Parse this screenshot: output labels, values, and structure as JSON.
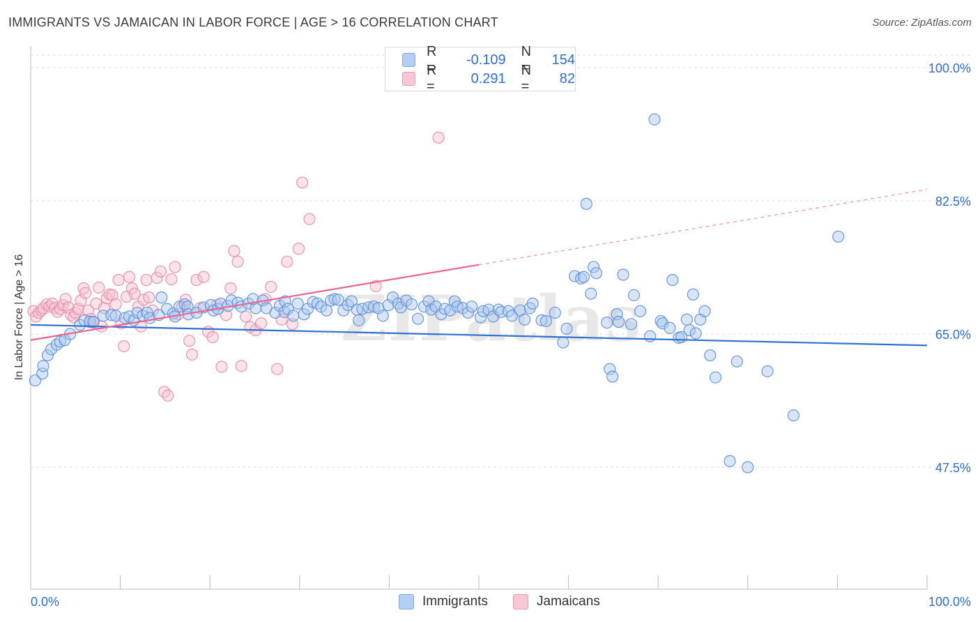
{
  "title": "IMMIGRANTS VS JAMAICAN IN LABOR FORCE | AGE > 16 CORRELATION CHART",
  "source": "Source: ZipAtlas.com",
  "watermark": "ZIPatlas",
  "legend": {
    "rows": [
      {
        "r_label": "R =",
        "r_value": "-0.109",
        "n_label": "N =",
        "n_value": "154",
        "color": "#8db4ea"
      },
      {
        "r_label": "R =",
        "r_value": "0.291",
        "n_label": "N =",
        "n_value": "82",
        "color": "#f4a9bd"
      }
    ]
  },
  "bottom_legend": {
    "immigrants": "Immigrants",
    "jamaicans": "Jamaicans"
  },
  "colors": {
    "blue_fill": "#a9c6ef",
    "blue_stroke": "#5b8fd8",
    "blue_line": "#2f6fd0",
    "pink_fill": "#f6c1cf",
    "pink_stroke": "#e88aa6",
    "pink_line": "#e8658f",
    "tick_label": "#2e6fcf",
    "grid": "#dddddd"
  },
  "chart_data": {
    "type": "scatter",
    "title": "IMMIGRANTS VS JAMAICAN IN LABOR FORCE | AGE > 16 CORRELATION CHART",
    "xlabel": "",
    "ylabel": "In Labor Force | Age > 16",
    "xlim": [
      0,
      100
    ],
    "ylim": [
      31.5,
      100.5
    ],
    "x_tick_labels": [
      "0.0%",
      "100.0%"
    ],
    "y_ticks": [
      47.5,
      65.0,
      82.5,
      100.0
    ],
    "y_tick_labels": [
      "47.5%",
      "65.0%",
      "82.5%",
      "100.0%"
    ],
    "grid": "horizontal dashed",
    "legend_position": "top-center",
    "series": [
      {
        "name": "Immigrants",
        "R": -0.109,
        "N": 154,
        "trend": {
          "x": [
            0,
            100
          ],
          "y": [
            66.2,
            63.5
          ],
          "dashed_from": null
        },
        "points": [
          [
            0.5,
            58.9
          ],
          [
            1.3,
            59.8
          ],
          [
            1.4,
            60.8
          ],
          [
            1.9,
            62.2
          ],
          [
            2.3,
            63.0
          ],
          [
            2.9,
            63.6
          ],
          [
            3.3,
            64.0
          ],
          [
            3.8,
            64.2
          ],
          [
            4.4,
            65.0
          ],
          [
            5.5,
            66.2
          ],
          [
            6.0,
            66.8
          ],
          [
            6.6,
            66.6
          ],
          [
            7.0,
            66.6
          ],
          [
            8.1,
            67.4
          ],
          [
            9.0,
            67.5
          ],
          [
            9.5,
            67.4
          ],
          [
            10.5,
            67.1
          ],
          [
            11.0,
            67.3
          ],
          [
            11.5,
            66.8
          ],
          [
            11.9,
            67.8
          ],
          [
            12.5,
            67.4
          ],
          [
            13.0,
            67.8
          ],
          [
            13.3,
            67.1
          ],
          [
            14.3,
            67.5
          ],
          [
            14.6,
            69.8
          ],
          [
            15.2,
            68.3
          ],
          [
            15.9,
            67.7
          ],
          [
            16.1,
            67.3
          ],
          [
            16.6,
            68.6
          ],
          [
            17.2,
            68.9
          ],
          [
            17.5,
            68.6
          ],
          [
            17.6,
            67.6
          ],
          [
            18.5,
            67.8
          ],
          [
            19.3,
            68.5
          ],
          [
            20.1,
            68.8
          ],
          [
            20.4,
            68.1
          ],
          [
            20.9,
            68.3
          ],
          [
            21.2,
            69.0
          ],
          [
            22.0,
            68.7
          ],
          [
            22.4,
            69.4
          ],
          [
            23.1,
            69.1
          ],
          [
            23.5,
            68.6
          ],
          [
            24.3,
            69.0
          ],
          [
            25.1,
            68.4
          ],
          [
            24.8,
            69.6
          ],
          [
            25.9,
            69.4
          ],
          [
            26.3,
            68.4
          ],
          [
            27.3,
            67.8
          ],
          [
            27.8,
            68.7
          ],
          [
            28.3,
            67.9
          ],
          [
            28.4,
            69.3
          ],
          [
            28.7,
            68.3
          ],
          [
            29.3,
            67.4
          ],
          [
            29.8,
            69.0
          ],
          [
            30.5,
            67.6
          ],
          [
            30.9,
            68.3
          ],
          [
            31.5,
            69.2
          ],
          [
            32.0,
            69.0
          ],
          [
            32.4,
            68.6
          ],
          [
            33.0,
            68.1
          ],
          [
            33.5,
            69.4
          ],
          [
            33.9,
            69.6
          ],
          [
            34.3,
            69.5
          ],
          [
            34.9,
            68.1
          ],
          [
            35.4,
            68.8
          ],
          [
            35.8,
            69.3
          ],
          [
            36.4,
            68.2
          ],
          [
            36.6,
            66.8
          ],
          [
            37.0,
            68.3
          ],
          [
            37.7,
            68.5
          ],
          [
            38.3,
            68.6
          ],
          [
            38.8,
            68.4
          ],
          [
            39.3,
            67.4
          ],
          [
            39.9,
            68.8
          ],
          [
            40.4,
            69.8
          ],
          [
            41.0,
            69.0
          ],
          [
            41.3,
            68.5
          ],
          [
            41.9,
            69.4
          ],
          [
            42.5,
            68.9
          ],
          [
            43.2,
            67.0
          ],
          [
            43.9,
            68.6
          ],
          [
            44.4,
            69.3
          ],
          [
            44.7,
            68.2
          ],
          [
            45.2,
            68.6
          ],
          [
            45.8,
            67.6
          ],
          [
            46.2,
            68.3
          ],
          [
            46.8,
            68.1
          ],
          [
            47.3,
            69.3
          ],
          [
            47.6,
            68.6
          ],
          [
            48.2,
            68.4
          ],
          [
            48.8,
            67.8
          ],
          [
            49.2,
            68.6
          ],
          [
            50.2,
            67.2
          ],
          [
            50.5,
            68.0
          ],
          [
            51.1,
            68.2
          ],
          [
            51.6,
            67.3
          ],
          [
            52.2,
            68.2
          ],
          [
            52.5,
            67.9
          ],
          [
            53.3,
            68.0
          ],
          [
            53.7,
            67.4
          ],
          [
            54.6,
            68.1
          ],
          [
            55.1,
            66.9
          ],
          [
            55.7,
            68.4
          ],
          [
            56.0,
            69.0
          ],
          [
            57.0,
            66.8
          ],
          [
            57.5,
            66.7
          ],
          [
            58.5,
            67.8
          ],
          [
            59.4,
            63.9
          ],
          [
            59.8,
            65.7
          ],
          [
            60.7,
            72.6
          ],
          [
            61.4,
            72.3
          ],
          [
            61.7,
            72.5
          ],
          [
            62.0,
            82.1
          ],
          [
            62.5,
            70.3
          ],
          [
            62.8,
            73.8
          ],
          [
            63.1,
            73.0
          ],
          [
            64.3,
            66.5
          ],
          [
            64.6,
            60.4
          ],
          [
            64.9,
            59.4
          ],
          [
            65.4,
            67.6
          ],
          [
            65.6,
            66.6
          ],
          [
            66.1,
            72.8
          ],
          [
            67.0,
            66.3
          ],
          [
            67.3,
            70.1
          ],
          [
            68.0,
            68.0
          ],
          [
            69.1,
            64.7
          ],
          [
            69.6,
            93.2
          ],
          [
            70.3,
            66.7
          ],
          [
            70.5,
            66.4
          ],
          [
            71.3,
            65.8
          ],
          [
            71.6,
            72.1
          ],
          [
            72.3,
            64.5
          ],
          [
            72.6,
            64.6
          ],
          [
            73.2,
            66.9
          ],
          [
            73.5,
            65.5
          ],
          [
            73.9,
            70.2
          ],
          [
            74.2,
            65.1
          ],
          [
            74.7,
            66.9
          ],
          [
            75.2,
            68.0
          ],
          [
            75.8,
            62.2
          ],
          [
            76.4,
            59.3
          ],
          [
            78.0,
            48.3
          ],
          [
            78.8,
            61.4
          ],
          [
            80.0,
            47.5
          ],
          [
            82.2,
            60.1
          ],
          [
            85.1,
            54.3
          ],
          [
            90.1,
            77.8
          ]
        ]
      },
      {
        "name": "Jamaicans",
        "R": 0.291,
        "N": 82,
        "trend": {
          "x": [
            0,
            100
          ],
          "y": [
            64.2,
            84.0
          ],
          "dashed_from": 50
        },
        "points": [
          [
            0.3,
            68.0
          ],
          [
            0.6,
            67.3
          ],
          [
            0.9,
            67.8
          ],
          [
            1.2,
            68.1
          ],
          [
            1.4,
            68.4
          ],
          [
            1.8,
            68.9
          ],
          [
            2.1,
            68.6
          ],
          [
            2.4,
            69.0
          ],
          [
            2.7,
            68.4
          ],
          [
            3.0,
            67.9
          ],
          [
            3.3,
            68.3
          ],
          [
            3.6,
            68.8
          ],
          [
            3.9,
            69.6
          ],
          [
            4.2,
            68.5
          ],
          [
            4.5,
            67.5
          ],
          [
            4.8,
            67.2
          ],
          [
            5.0,
            67.8
          ],
          [
            5.3,
            68.3
          ],
          [
            5.6,
            69.4
          ],
          [
            5.9,
            71.0
          ],
          [
            6.1,
            70.4
          ],
          [
            6.4,
            68.1
          ],
          [
            6.7,
            67.0
          ],
          [
            7.0,
            66.5
          ],
          [
            7.3,
            69.0
          ],
          [
            7.6,
            71.1
          ],
          [
            7.9,
            66.0
          ],
          [
            8.2,
            68.4
          ],
          [
            8.5,
            69.7
          ],
          [
            8.8,
            70.2
          ],
          [
            9.1,
            70.1
          ],
          [
            9.5,
            68.9
          ],
          [
            9.8,
            72.1
          ],
          [
            10.1,
            66.4
          ],
          [
            10.4,
            63.4
          ],
          [
            10.7,
            69.9
          ],
          [
            11.0,
            72.5
          ],
          [
            11.3,
            71.0
          ],
          [
            11.6,
            70.3
          ],
          [
            12.0,
            68.6
          ],
          [
            12.3,
            66.0
          ],
          [
            12.6,
            69.5
          ],
          [
            12.9,
            72.1
          ],
          [
            13.2,
            69.8
          ],
          [
            13.6,
            68.1
          ],
          [
            14.1,
            72.4
          ],
          [
            14.5,
            73.2
          ],
          [
            14.9,
            57.4
          ],
          [
            15.3,
            56.9
          ],
          [
            15.7,
            72.2
          ],
          [
            16.1,
            73.8
          ],
          [
            16.5,
            67.6
          ],
          [
            16.9,
            68.6
          ],
          [
            17.3,
            69.5
          ],
          [
            17.7,
            64.1
          ],
          [
            18.0,
            62.3
          ],
          [
            18.5,
            72.1
          ],
          [
            18.9,
            68.4
          ],
          [
            19.3,
            72.5
          ],
          [
            19.8,
            65.3
          ],
          [
            20.3,
            64.6
          ],
          [
            20.8,
            68.8
          ],
          [
            21.3,
            60.7
          ],
          [
            21.8,
            67.5
          ],
          [
            22.3,
            71.0
          ],
          [
            22.7,
            75.9
          ],
          [
            23.1,
            74.5
          ],
          [
            23.5,
            60.8
          ],
          [
            24.0,
            67.3
          ],
          [
            24.5,
            65.9
          ],
          [
            25.1,
            65.5
          ],
          [
            25.7,
            66.4
          ],
          [
            26.2,
            69.6
          ],
          [
            26.8,
            71.2
          ],
          [
            27.5,
            60.4
          ],
          [
            28.0,
            66.9
          ],
          [
            28.6,
            74.5
          ],
          [
            29.2,
            66.3
          ],
          [
            29.9,
            76.2
          ],
          [
            30.3,
            84.9
          ],
          [
            31.1,
            80.1
          ],
          [
            38.5,
            71.3
          ],
          [
            45.5,
            90.8
          ]
        ]
      }
    ]
  }
}
